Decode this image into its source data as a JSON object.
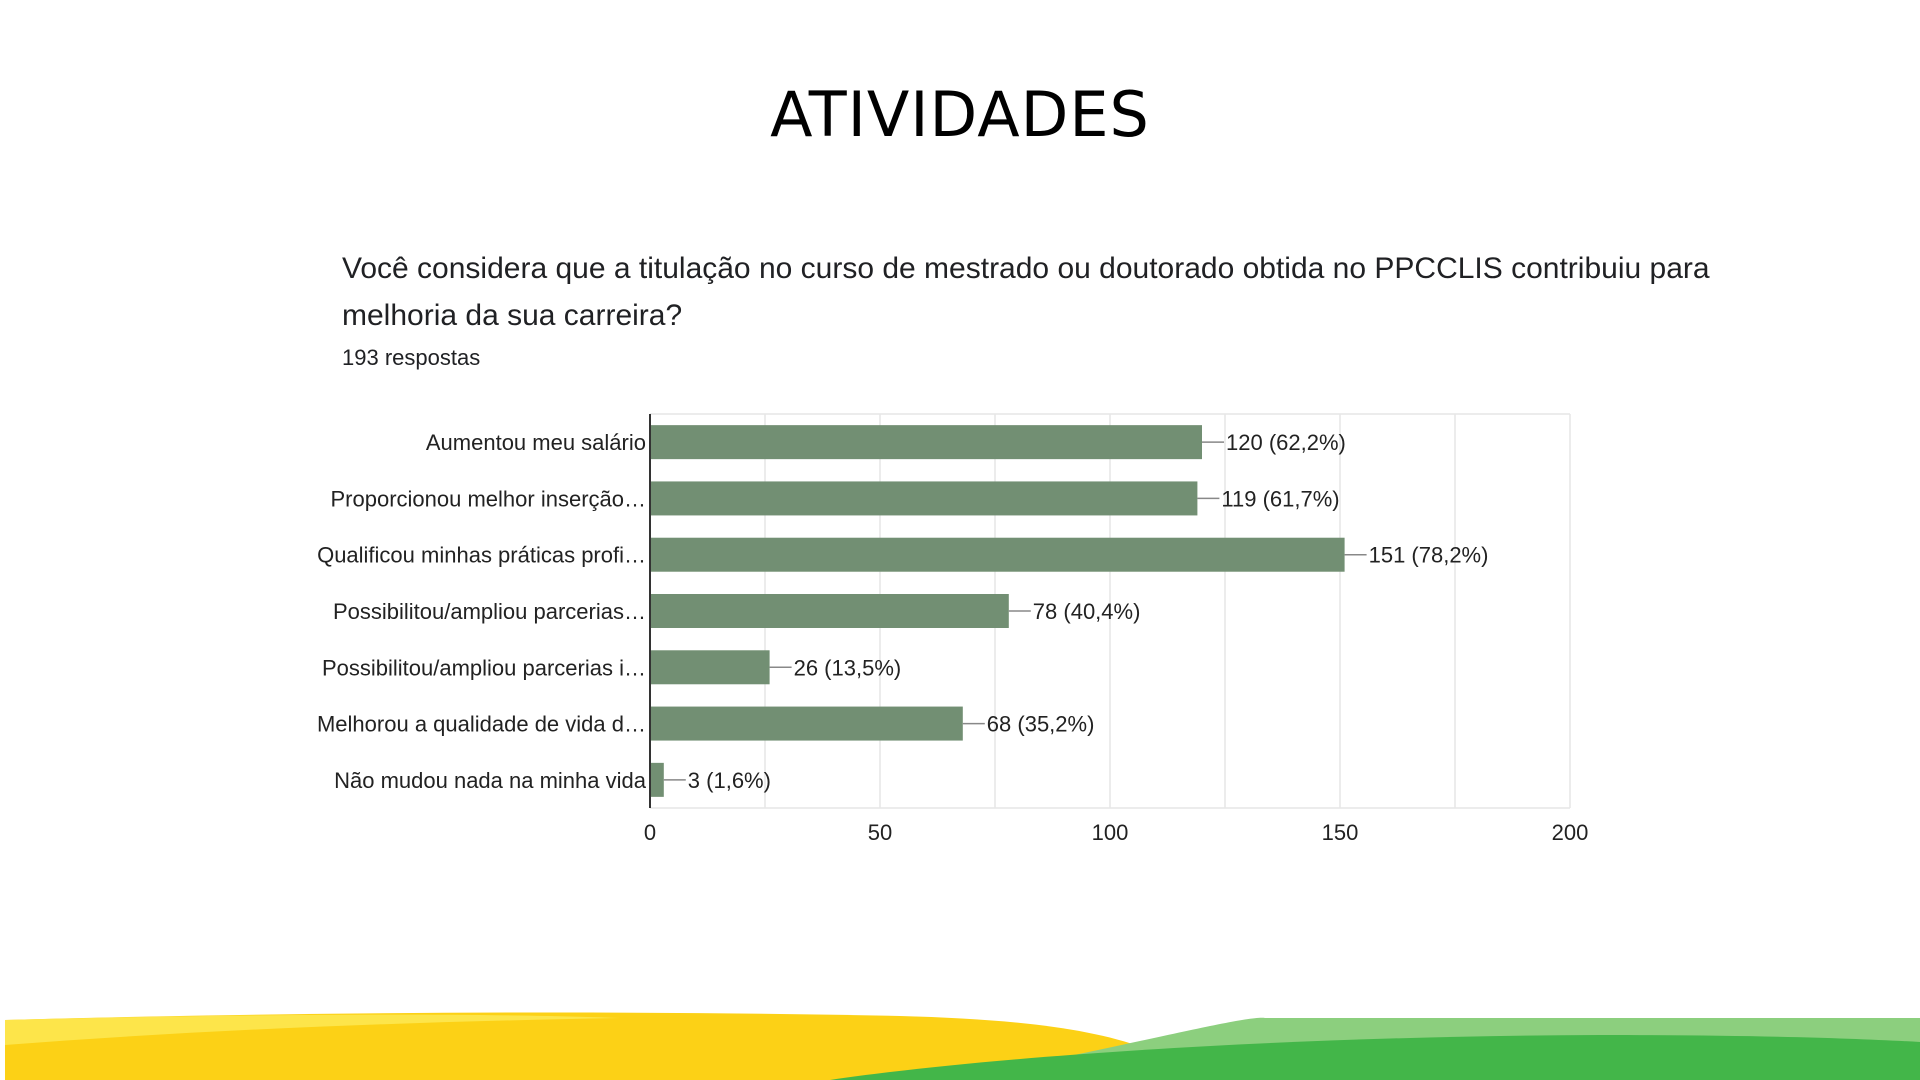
{
  "slide": {
    "title": "ATIVIDADES"
  },
  "question": {
    "text": "Você considera que a titulação no curso de mestrado ou doutorado obtida no PPCCLIS contribuiu para melhoria da sua carreira?",
    "responses": "193 respostas"
  },
  "colors": {
    "bar": "#728f73",
    "grid": "#e6e6e6",
    "axis": "#333333",
    "footer_yellow": "#fcd116",
    "footer_light_yellow": "#fde54a",
    "footer_green": "#43b649",
    "footer_light_green": "#8ccf7e"
  },
  "chart_data": {
    "type": "bar",
    "orientation": "horizontal",
    "categories": [
      "Aumentou meu salário",
      "Proporcionou melhor inserção…",
      "Qualificou minhas práticas profi…",
      "Possibilitou/ampliou parcerias…",
      "Possibilitou/ampliou parcerias i…",
      "Melhorou a qualidade de vida d…",
      "Não mudou nada na minha vida"
    ],
    "values": [
      120,
      119,
      151,
      78,
      26,
      68,
      3
    ],
    "value_labels": [
      "120 (62,2%)",
      "119 (61,7%)",
      "151 (78,2%)",
      "78 (40,4%)",
      "26 (13,5%)",
      "68 (35,2%)",
      "3 (1,6%)"
    ],
    "xlim": [
      0,
      200
    ],
    "xticks": [
      0,
      50,
      100,
      150,
      200
    ],
    "xtick_labels": [
      "0",
      "50",
      "100",
      "150",
      "200"
    ],
    "grid": true
  }
}
